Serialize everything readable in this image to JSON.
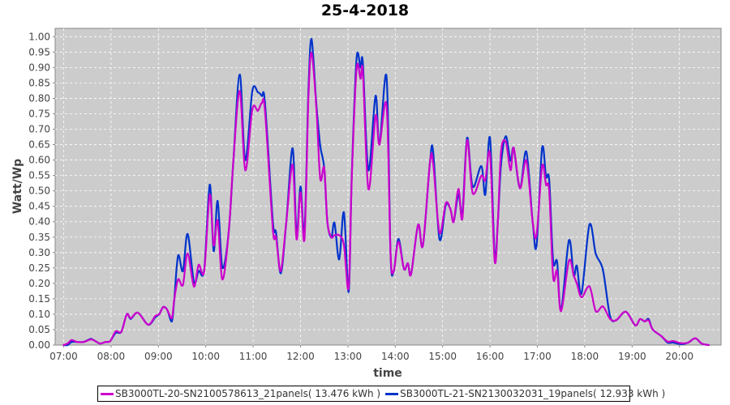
{
  "chart_data": {
    "type": "line",
    "title": "25-4-2018",
    "xlabel": "time",
    "ylabel": "Watt/Wp",
    "ylim": [
      0,
      1.0
    ],
    "xlim": [
      "06:47",
      "21:00"
    ],
    "yticks": [
      "0.00",
      "0.05",
      "0.10",
      "0.15",
      "0.20",
      "0.25",
      "0.30",
      "0.35",
      "0.40",
      "0.45",
      "0.50",
      "0.55",
      "0.60",
      "0.65",
      "0.70",
      "0.75",
      "0.80",
      "0.85",
      "0.90",
      "0.95",
      "1.00"
    ],
    "xticks": [
      "07:00",
      "08:00",
      "09:00",
      "10:00",
      "11:00",
      "12:00",
      "13:00",
      "14:00",
      "15:00",
      "16:00",
      "17:00",
      "18:00",
      "19:00",
      "20:00"
    ],
    "grid": true,
    "legend_position": "bottom",
    "background": "#cccccc",
    "x": [
      "07:00",
      "07:05",
      "07:10",
      "07:17",
      "07:25",
      "07:34",
      "07:38",
      "07:46",
      "07:53",
      "07:59",
      "08:06",
      "08:13",
      "08:20",
      "08:25",
      "08:34",
      "08:47",
      "08:56",
      "09:01",
      "09:06",
      "09:11",
      "09:17",
      "09:20",
      "09:25",
      "09:31",
      "09:37",
      "09:45",
      "09:51",
      "09:58",
      "10:05",
      "10:10",
      "10:15",
      "10:21",
      "10:29",
      "10:35",
      "10:43",
      "10:50",
      "10:59",
      "11:06",
      "11:11",
      "11:15",
      "11:25",
      "11:29",
      "11:35",
      "11:42",
      "11:50",
      "11:55",
      "12:00",
      "12:05",
      "12:10",
      "12:14",
      "12:20",
      "12:25",
      "12:30",
      "12:34",
      "12:39",
      "12:43",
      "12:49",
      "12:55",
      "13:01",
      "13:05",
      "13:11",
      "13:16",
      "13:19",
      "13:26",
      "13:35",
      "13:40",
      "13:49",
      "13:54",
      "13:58",
      "14:04",
      "14:11",
      "14:16",
      "14:20",
      "14:29",
      "14:35",
      "14:44",
      "14:48",
      "14:56",
      "15:04",
      "15:10",
      "15:14",
      "15:20",
      "15:25",
      "15:31",
      "15:38",
      "15:49",
      "15:54",
      "16:00",
      "16:06",
      "16:10",
      "16:14",
      "16:20",
      "16:26",
      "16:30",
      "16:38",
      "16:46",
      "16:54",
      "16:59",
      "17:06",
      "17:11",
      "17:15",
      "17:20",
      "17:25",
      "17:30",
      "17:40",
      "17:46",
      "17:50",
      "17:56",
      "18:06",
      "18:14",
      "18:23",
      "18:32",
      "18:40",
      "18:52",
      "19:04",
      "19:10",
      "19:16",
      "19:21",
      "19:26",
      "19:37",
      "19:45",
      "19:52",
      "20:02",
      "20:11",
      "20:20",
      "20:28",
      "20:37"
    ],
    "series": [
      {
        "name": "SB3000TL-20-SN2100578613_21panels( 13.476 kWh )",
        "color": "#cc00cc",
        "values": [
          0,
          0.005,
          0.016,
          0.01,
          0.01,
          0.018,
          0.016,
          0.005,
          0.01,
          0.013,
          0.045,
          0.043,
          0.1,
          0.087,
          0.105,
          0.066,
          0.094,
          0.1,
          0.123,
          0.115,
          0.087,
          0.147,
          0.213,
          0.195,
          0.297,
          0.19,
          0.26,
          0.24,
          0.488,
          0.323,
          0.404,
          0.213,
          0.365,
          0.6,
          0.824,
          0.567,
          0.764,
          0.76,
          0.785,
          0.76,
          0.375,
          0.35,
          0.24,
          0.4,
          0.585,
          0.343,
          0.496,
          0.345,
          0.8,
          0.948,
          0.77,
          0.54,
          0.575,
          0.4,
          0.35,
          0.356,
          0.356,
          0.325,
          0.186,
          0.55,
          0.895,
          0.864,
          0.885,
          0.506,
          0.743,
          0.65,
          0.777,
          0.296,
          0.24,
          0.335,
          0.247,
          0.265,
          0.23,
          0.39,
          0.323,
          0.593,
          0.59,
          0.365,
          0.46,
          0.44,
          0.4,
          0.506,
          0.41,
          0.664,
          0.493,
          0.549,
          0.535,
          0.62,
          0.273,
          0.4,
          0.627,
          0.659,
          0.567,
          0.64,
          0.509,
          0.598,
          0.4,
          0.357,
          0.58,
          0.52,
          0.5,
          0.22,
          0.24,
          0.11,
          0.273,
          0.226,
          0.2,
          0.155,
          0.19,
          0.11,
          0.125,
          0.085,
          0.081,
          0.108,
          0.064,
          0.084,
          0.077,
          0.08,
          0.051,
          0.029,
          0.011,
          0.013,
          0.006,
          0.008,
          0.022,
          0.005,
          0
        ]
      },
      {
        "name": "SB3000TL-21-SN2130032031_19panels( 12.933 kWh )",
        "color": "#0033cc",
        "values": [
          0,
          0,
          0.01,
          0.01,
          0.01,
          0.02,
          0.016,
          0.005,
          0.01,
          0.013,
          0.04,
          0.043,
          0.1,
          0.085,
          0.105,
          0.066,
          0.09,
          0.1,
          0.123,
          0.115,
          0.077,
          0.147,
          0.29,
          0.24,
          0.36,
          0.205,
          0.24,
          0.245,
          0.52,
          0.305,
          0.467,
          0.252,
          0.365,
          0.6,
          0.877,
          0.6,
          0.824,
          0.82,
          0.808,
          0.785,
          0.4,
          0.365,
          0.233,
          0.4,
          0.638,
          0.362,
          0.514,
          0.37,
          0.824,
          0.992,
          0.782,
          0.646,
          0.575,
          0.4,
          0.349,
          0.396,
          0.278,
          0.43,
          0.173,
          0.559,
          0.929,
          0.9,
          0.913,
          0.567,
          0.808,
          0.651,
          0.869,
          0.296,
          0.239,
          0.344,
          0.247,
          0.265,
          0.23,
          0.39,
          0.323,
          0.593,
          0.627,
          0.344,
          0.454,
          0.44,
          0.4,
          0.488,
          0.428,
          0.672,
          0.514,
          0.58,
          0.488,
          0.672,
          0.291,
          0.4,
          0.585,
          0.677,
          0.598,
          0.638,
          0.509,
          0.627,
          0.4,
          0.323,
          0.638,
          0.546,
          0.535,
          0.273,
          0.27,
          0.113,
          0.339,
          0.226,
          0.257,
          0.168,
          0.39,
          0.296,
          0.244,
          0.095,
          0.081,
          0.108,
          0.064,
          0.084,
          0.077,
          0.084,
          0.051,
          0.029,
          0.008,
          0.008,
          0.003,
          0.008,
          0.022,
          0.005,
          0
        ]
      }
    ]
  }
}
